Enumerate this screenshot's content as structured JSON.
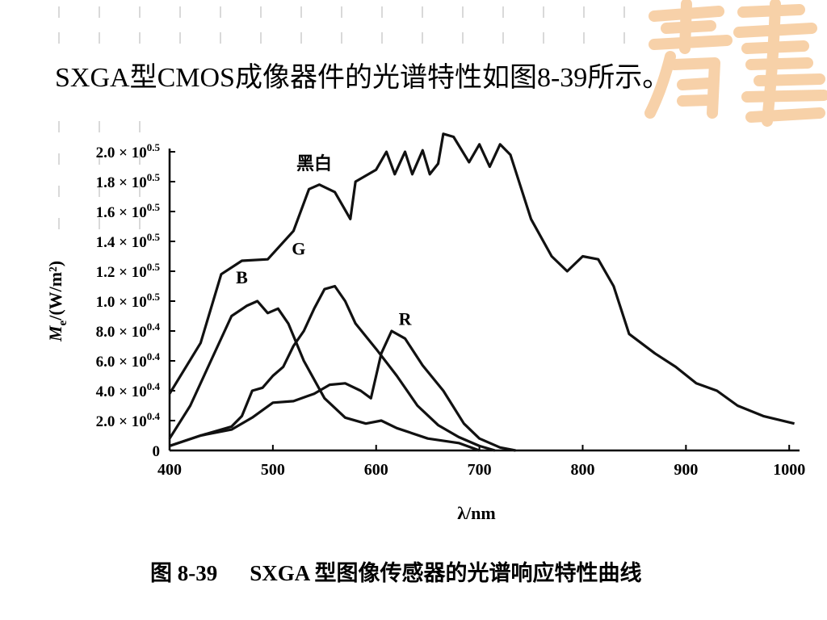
{
  "slide": {
    "heading": "SXGA型CMOS成像器件的光谱特性如图8-39所示。",
    "figure_number": "图 8-39",
    "figure_caption": "SXGA 型图像传感器的光谱响应特性曲线",
    "watermark_color": "#f6c99a"
  },
  "chart_data": {
    "type": "line",
    "title": "",
    "xlabel": "λ/nm",
    "ylabel": "Me/(W/m²)",
    "xlim": [
      400,
      1010
    ],
    "ylim": [
      0,
      2.0
    ],
    "x_ticks": [
      400,
      500,
      600,
      700,
      800,
      900,
      1000
    ],
    "y_ticks": [
      {
        "value": 0,
        "label": "0"
      },
      {
        "value": 0.2,
        "label": "2.0 × 10^0.4"
      },
      {
        "value": 0.4,
        "label": "4.0 × 10^0.4"
      },
      {
        "value": 0.6,
        "label": "6.0 × 10^0.4"
      },
      {
        "value": 0.8,
        "label": "8.0 × 10^0.4"
      },
      {
        "value": 1.0,
        "label": "1.0 × 10^0.5"
      },
      {
        "value": 1.2,
        "label": "1.2 × 10^0.5"
      },
      {
        "value": 1.4,
        "label": "1.4 × 10^0.5"
      },
      {
        "value": 1.6,
        "label": "1.6 × 10^0.5"
      },
      {
        "value": 1.8,
        "label": "1.8 × 10^0.5"
      },
      {
        "value": 2.0,
        "label": "2.0 × 10^0.5"
      }
    ],
    "line_color": "#111111",
    "series": [
      {
        "name": "黑白",
        "label_at": [
          540,
          1.88
        ],
        "points": [
          [
            400,
            0.38
          ],
          [
            430,
            0.72
          ],
          [
            450,
            1.18
          ],
          [
            470,
            1.27
          ],
          [
            495,
            1.28
          ],
          [
            520,
            1.47
          ],
          [
            535,
            1.75
          ],
          [
            545,
            1.78
          ],
          [
            560,
            1.73
          ],
          [
            575,
            1.55
          ],
          [
            580,
            1.8
          ],
          [
            600,
            1.88
          ],
          [
            610,
            2.0
          ],
          [
            618,
            1.85
          ],
          [
            628,
            2.0
          ],
          [
            635,
            1.85
          ],
          [
            645,
            2.01
          ],
          [
            652,
            1.85
          ],
          [
            660,
            1.92
          ],
          [
            665,
            2.12
          ],
          [
            675,
            2.1
          ],
          [
            690,
            1.93
          ],
          [
            700,
            2.05
          ],
          [
            710,
            1.9
          ],
          [
            720,
            2.05
          ],
          [
            730,
            1.98
          ],
          [
            750,
            1.55
          ],
          [
            770,
            1.3
          ],
          [
            785,
            1.2
          ],
          [
            800,
            1.3
          ],
          [
            815,
            1.28
          ],
          [
            830,
            1.1
          ],
          [
            845,
            0.78
          ],
          [
            870,
            0.65
          ],
          [
            890,
            0.56
          ],
          [
            910,
            0.45
          ],
          [
            930,
            0.4
          ],
          [
            950,
            0.3
          ],
          [
            975,
            0.23
          ],
          [
            1005,
            0.18
          ]
        ]
      },
      {
        "name": "B",
        "label_at": [
          470,
          1.12
        ],
        "points": [
          [
            400,
            0.08
          ],
          [
            420,
            0.3
          ],
          [
            440,
            0.6
          ],
          [
            460,
            0.9
          ],
          [
            475,
            0.97
          ],
          [
            485,
            1.0
          ],
          [
            495,
            0.92
          ],
          [
            505,
            0.95
          ],
          [
            515,
            0.85
          ],
          [
            530,
            0.6
          ],
          [
            550,
            0.35
          ],
          [
            570,
            0.22
          ],
          [
            590,
            0.18
          ],
          [
            605,
            0.2
          ],
          [
            620,
            0.15
          ],
          [
            650,
            0.08
          ],
          [
            680,
            0.05
          ],
          [
            700,
            0.0
          ]
        ]
      },
      {
        "name": "G",
        "label_at": [
          525,
          1.31
        ],
        "points": [
          [
            400,
            0.03
          ],
          [
            430,
            0.1
          ],
          [
            460,
            0.16
          ],
          [
            470,
            0.23
          ],
          [
            480,
            0.4
          ],
          [
            490,
            0.42
          ],
          [
            500,
            0.5
          ],
          [
            510,
            0.56
          ],
          [
            520,
            0.7
          ],
          [
            530,
            0.8
          ],
          [
            540,
            0.95
          ],
          [
            550,
            1.08
          ],
          [
            560,
            1.1
          ],
          [
            570,
            1.0
          ],
          [
            580,
            0.85
          ],
          [
            600,
            0.68
          ],
          [
            620,
            0.5
          ],
          [
            640,
            0.3
          ],
          [
            660,
            0.17
          ],
          [
            680,
            0.09
          ],
          [
            700,
            0.03
          ],
          [
            715,
            0.0
          ]
        ]
      },
      {
        "name": "R",
        "label_at": [
          628,
          0.84
        ],
        "points": [
          [
            400,
            0.03
          ],
          [
            430,
            0.1
          ],
          [
            460,
            0.14
          ],
          [
            480,
            0.22
          ],
          [
            500,
            0.32
          ],
          [
            520,
            0.33
          ],
          [
            540,
            0.38
          ],
          [
            555,
            0.44
          ],
          [
            570,
            0.45
          ],
          [
            585,
            0.4
          ],
          [
            595,
            0.35
          ],
          [
            605,
            0.65
          ],
          [
            615,
            0.8
          ],
          [
            628,
            0.75
          ],
          [
            645,
            0.57
          ],
          [
            665,
            0.4
          ],
          [
            685,
            0.18
          ],
          [
            700,
            0.08
          ],
          [
            720,
            0.02
          ],
          [
            735,
            0.0
          ]
        ]
      }
    ]
  }
}
